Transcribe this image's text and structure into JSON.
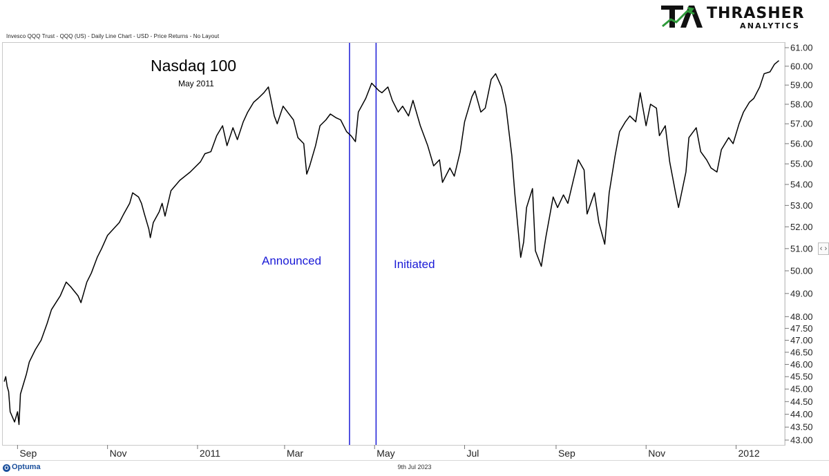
{
  "header": {
    "source_line": "Invesco QQQ Trust - QQQ (US) - Daily Line Chart - USD - Price Returns - No Layout"
  },
  "logo": {
    "word": "THRASHER",
    "sub": "ANALYTICS",
    "colors": {
      "dark": "#111111",
      "green": "#2e9a3a"
    }
  },
  "footer": {
    "date": "9th Jul 2023",
    "brand": "Optuma"
  },
  "scroll_tab": "‹ ›",
  "chart_data": {
    "type": "line",
    "title": "Nasdaq 100",
    "subtitle": "May 2011",
    "series": [
      {
        "color": "#000000",
        "points": [
          [
            "2010-08-23",
            45.3
          ],
          [
            "2010-08-24",
            45.5
          ],
          [
            "2010-08-25",
            45.1
          ],
          [
            "2010-08-26",
            44.9
          ],
          [
            "2010-08-27",
            44.1
          ],
          [
            "2010-08-30",
            43.7
          ],
          [
            "2010-08-31",
            43.9
          ],
          [
            "2010-09-01",
            44.1
          ],
          [
            "2010-09-02",
            43.6
          ],
          [
            "2010-09-03",
            44.8
          ],
          [
            "2010-09-07",
            45.6
          ],
          [
            "2010-09-09",
            46.1
          ],
          [
            "2010-09-13",
            46.6
          ],
          [
            "2010-09-17",
            47.0
          ],
          [
            "2010-09-21",
            47.7
          ],
          [
            "2010-09-24",
            48.3
          ],
          [
            "2010-09-28",
            48.7
          ],
          [
            "2010-09-30",
            48.9
          ],
          [
            "2010-10-04",
            49.5
          ],
          [
            "2010-10-07",
            49.3
          ],
          [
            "2010-10-12",
            48.9
          ],
          [
            "2010-10-14",
            48.6
          ],
          [
            "2010-10-18",
            49.5
          ],
          [
            "2010-10-21",
            49.9
          ],
          [
            "2010-10-25",
            50.6
          ],
          [
            "2010-10-28",
            51.0
          ],
          [
            "2010-11-01",
            51.6
          ],
          [
            "2010-11-05",
            51.9
          ],
          [
            "2010-11-09",
            52.2
          ],
          [
            "2010-11-12",
            52.6
          ],
          [
            "2010-11-16",
            53.1
          ],
          [
            "2010-11-18",
            53.6
          ],
          [
            "2010-11-22",
            53.4
          ],
          [
            "2010-11-24",
            53.1
          ],
          [
            "2010-11-26",
            52.6
          ],
          [
            "2010-11-29",
            51.9
          ],
          [
            "2010-11-30",
            51.5
          ],
          [
            "2010-12-02",
            52.2
          ],
          [
            "2010-12-06",
            52.7
          ],
          [
            "2010-12-08",
            53.1
          ],
          [
            "2010-12-10",
            52.5
          ],
          [
            "2010-12-14",
            53.7
          ],
          [
            "2010-12-20",
            54.2
          ],
          [
            "2010-12-27",
            54.6
          ],
          [
            "2011-01-03",
            55.1
          ],
          [
            "2011-01-06",
            55.5
          ],
          [
            "2011-01-10",
            55.6
          ],
          [
            "2011-01-14",
            56.4
          ],
          [
            "2011-01-18",
            56.9
          ],
          [
            "2011-01-21",
            55.9
          ],
          [
            "2011-01-25",
            56.8
          ],
          [
            "2011-01-28",
            56.2
          ],
          [
            "2011-02-01",
            57.1
          ],
          [
            "2011-02-04",
            57.6
          ],
          [
            "2011-02-08",
            58.1
          ],
          [
            "2011-02-11",
            58.3
          ],
          [
            "2011-02-15",
            58.6
          ],
          [
            "2011-02-18",
            58.9
          ],
          [
            "2011-02-22",
            57.4
          ],
          [
            "2011-02-24",
            57.0
          ],
          [
            "2011-02-28",
            57.9
          ],
          [
            "2011-03-03",
            57.6
          ],
          [
            "2011-03-07",
            57.2
          ],
          [
            "2011-03-10",
            56.3
          ],
          [
            "2011-03-14",
            56.0
          ],
          [
            "2011-03-16",
            54.5
          ],
          [
            "2011-03-18",
            54.9
          ],
          [
            "2011-03-22",
            55.9
          ],
          [
            "2011-03-25",
            56.9
          ],
          [
            "2011-03-29",
            57.2
          ],
          [
            "2011-04-01",
            57.5
          ],
          [
            "2011-04-05",
            57.3
          ],
          [
            "2011-04-08",
            57.2
          ],
          [
            "2011-04-12",
            56.6
          ],
          [
            "2011-04-15",
            56.4
          ],
          [
            "2011-04-18",
            56.1
          ],
          [
            "2011-04-20",
            57.6
          ],
          [
            "2011-04-25",
            58.3
          ],
          [
            "2011-04-29",
            59.1
          ],
          [
            "2011-05-04",
            58.7
          ],
          [
            "2011-05-06",
            58.6
          ],
          [
            "2011-05-10",
            58.9
          ],
          [
            "2011-05-13",
            58.2
          ],
          [
            "2011-05-17",
            57.6
          ],
          [
            "2011-05-20",
            57.9
          ],
          [
            "2011-05-24",
            57.4
          ],
          [
            "2011-05-27",
            58.2
          ],
          [
            "2011-06-01",
            56.9
          ],
          [
            "2011-06-06",
            55.9
          ],
          [
            "2011-06-10",
            54.9
          ],
          [
            "2011-06-14",
            55.2
          ],
          [
            "2011-06-16",
            54.1
          ],
          [
            "2011-06-21",
            54.8
          ],
          [
            "2011-06-24",
            54.4
          ],
          [
            "2011-06-28",
            55.6
          ],
          [
            "2011-07-01",
            57.1
          ],
          [
            "2011-07-06",
            58.4
          ],
          [
            "2011-07-08",
            58.7
          ],
          [
            "2011-07-12",
            57.6
          ],
          [
            "2011-07-15",
            57.8
          ],
          [
            "2011-07-19",
            59.3
          ],
          [
            "2011-07-22",
            59.6
          ],
          [
            "2011-07-26",
            58.9
          ],
          [
            "2011-07-29",
            57.9
          ],
          [
            "2011-08-02",
            55.4
          ],
          [
            "2011-08-04",
            53.6
          ],
          [
            "2011-08-08",
            50.6
          ],
          [
            "2011-08-10",
            51.3
          ],
          [
            "2011-08-12",
            52.9
          ],
          [
            "2011-08-16",
            53.8
          ],
          [
            "2011-08-18",
            50.9
          ],
          [
            "2011-08-22",
            50.2
          ],
          [
            "2011-08-25",
            51.5
          ],
          [
            "2011-08-30",
            53.4
          ],
          [
            "2011-09-02",
            52.9
          ],
          [
            "2011-09-06",
            53.5
          ],
          [
            "2011-09-09",
            53.1
          ],
          [
            "2011-09-13",
            54.3
          ],
          [
            "2011-09-16",
            55.2
          ],
          [
            "2011-09-20",
            54.7
          ],
          [
            "2011-09-22",
            52.6
          ],
          [
            "2011-09-27",
            53.6
          ],
          [
            "2011-09-30",
            52.2
          ],
          [
            "2011-10-04",
            51.2
          ],
          [
            "2011-10-07",
            53.6
          ],
          [
            "2011-10-11",
            55.4
          ],
          [
            "2011-10-14",
            56.6
          ],
          [
            "2011-10-18",
            57.1
          ],
          [
            "2011-10-21",
            57.4
          ],
          [
            "2011-10-25",
            57.1
          ],
          [
            "2011-10-28",
            58.6
          ],
          [
            "2011-11-01",
            56.9
          ],
          [
            "2011-11-04",
            58.0
          ],
          [
            "2011-11-08",
            57.8
          ],
          [
            "2011-11-10",
            56.4
          ],
          [
            "2011-11-14",
            56.9
          ],
          [
            "2011-11-17",
            55.1
          ],
          [
            "2011-11-21",
            53.6
          ],
          [
            "2011-11-23",
            52.9
          ],
          [
            "2011-11-28",
            54.6
          ],
          [
            "2011-11-30",
            56.3
          ],
          [
            "2011-12-05",
            56.8
          ],
          [
            "2011-12-08",
            55.6
          ],
          [
            "2011-12-12",
            55.2
          ],
          [
            "2011-12-15",
            54.8
          ],
          [
            "2011-12-19",
            54.6
          ],
          [
            "2011-12-22",
            55.7
          ],
          [
            "2011-12-27",
            56.3
          ],
          [
            "2011-12-30",
            56.0
          ],
          [
            "2012-01-03",
            57.0
          ],
          [
            "2012-01-06",
            57.6
          ],
          [
            "2012-01-10",
            58.1
          ],
          [
            "2012-01-13",
            58.3
          ],
          [
            "2012-01-17",
            58.9
          ],
          [
            "2012-01-20",
            59.6
          ],
          [
            "2012-01-24",
            59.7
          ],
          [
            "2012-01-27",
            60.1
          ],
          [
            "2012-01-30",
            60.3
          ]
        ]
      }
    ],
    "x_range": [
      "2010-08-22",
      "2012-02-03"
    ],
    "x_ticks": [
      {
        "date": "2010-09-01",
        "label": "Sep"
      },
      {
        "date": "2010-11-01",
        "label": "Nov"
      },
      {
        "date": "2011-01-01",
        "label": "2011"
      },
      {
        "date": "2011-03-01",
        "label": "Mar"
      },
      {
        "date": "2011-05-01",
        "label": "May"
      },
      {
        "date": "2011-07-01",
        "label": "Jul"
      },
      {
        "date": "2011-09-01",
        "label": "Sep"
      },
      {
        "date": "2011-11-01",
        "label": "Nov"
      },
      {
        "date": "2012-01-01",
        "label": "2012"
      }
    ],
    "y_scale": "log",
    "y_range": [
      43.0,
      61.0
    ],
    "y_ticks": [
      {
        "value": 43.0,
        "label": "43.00"
      },
      {
        "value": 43.5,
        "label": "43.50"
      },
      {
        "value": 44.0,
        "label": "44.00"
      },
      {
        "value": 44.5,
        "label": "44.50"
      },
      {
        "value": 45.0,
        "label": "45.00"
      },
      {
        "value": 45.5,
        "label": "45.50"
      },
      {
        "value": 46.0,
        "label": "46.00"
      },
      {
        "value": 46.5,
        "label": "46.50"
      },
      {
        "value": 47.0,
        "label": "47.00"
      },
      {
        "value": 47.5,
        "label": "47.50"
      },
      {
        "value": 48.0,
        "label": "48.00"
      },
      {
        "value": 49.0,
        "label": "49.00"
      },
      {
        "value": 50.0,
        "label": "50.00"
      },
      {
        "value": 51.0,
        "label": "51.00"
      },
      {
        "value": 52.0,
        "label": "52.00"
      },
      {
        "value": 53.0,
        "label": "53.00"
      },
      {
        "value": 54.0,
        "label": "54.00"
      },
      {
        "value": 55.0,
        "label": "55.00"
      },
      {
        "value": 56.0,
        "label": "56.00"
      },
      {
        "value": 57.0,
        "label": "57.00"
      },
      {
        "value": 58.0,
        "label": "58.00"
      },
      {
        "value": 59.0,
        "label": "59.00"
      },
      {
        "value": 60.0,
        "label": "60.00"
      },
      {
        "value": 61.0,
        "label": "61.00"
      }
    ],
    "grid": false,
    "annotations": [
      {
        "label": "Announced",
        "date": "2011-04-14",
        "color": "#1a1ad6"
      },
      {
        "label": "Initiated",
        "date": "2011-05-02",
        "color": "#1a1ad6"
      }
    ]
  }
}
